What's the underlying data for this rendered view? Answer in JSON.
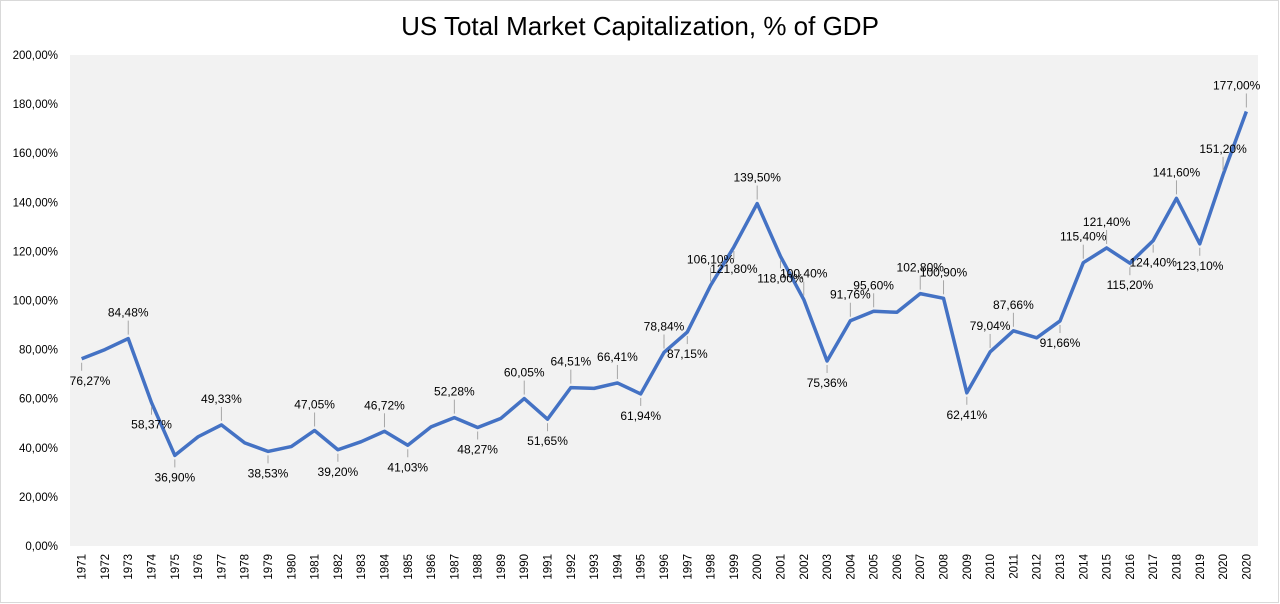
{
  "chart_data": {
    "type": "line",
    "title": "US Total Market Capitalization, % of GDP",
    "categories": [
      "1971",
      "1972",
      "1973",
      "1974",
      "1975",
      "1976",
      "1977",
      "1978",
      "1979",
      "1980",
      "1981",
      "1982",
      "1983",
      "1984",
      "1985",
      "1986",
      "1987",
      "1988",
      "1989",
      "1990",
      "1991",
      "1992",
      "1993",
      "1994",
      "1995",
      "1996",
      "1997",
      "1998",
      "1999",
      "2000",
      "2001",
      "2002",
      "2003",
      "2004",
      "2005",
      "2006",
      "2007",
      "2008",
      "2009",
      "2010",
      "2011",
      "2012",
      "2013",
      "2014",
      "2015",
      "2016",
      "2017",
      "2018",
      "2019",
      "2020",
      "2020"
    ],
    "series": [
      {
        "color": "#4472c4",
        "values": [
          76.27,
          80,
          84.48,
          58.37,
          36.9,
          44.5,
          49.33,
          42,
          38.53,
          40.5,
          47.05,
          39.2,
          42.5,
          46.72,
          41.03,
          48.5,
          52.28,
          48.27,
          52,
          60.05,
          51.65,
          64.51,
          64.2,
          66.41,
          61.94,
          78.84,
          87.15,
          106.1,
          121.8,
          139.5,
          118.0,
          100.4,
          75.36,
          91.76,
          95.6,
          95.2,
          102.8,
          100.9,
          62.41,
          79.04,
          87.66,
          84.8,
          91.66,
          115.4,
          121.4,
          115.2,
          124.4,
          141.6,
          123.1,
          151.2,
          177.0
        ],
        "value_labels": [
          "76,27%",
          null,
          "84,48%",
          "58,37%",
          "36,90%",
          null,
          "49,33%",
          null,
          "38,53%",
          null,
          "47,05%",
          "39,20%",
          null,
          "46,72%",
          "41,03%",
          null,
          "52,28%",
          "48,27%",
          null,
          "60,05%",
          "51,65%",
          "64,51%",
          null,
          "66,41%",
          "61,94%",
          "78,84%",
          "87,15%",
          "106,10%",
          "121,80%",
          "139,50%",
          "118,00%",
          "100,40%",
          "75,36%",
          "91,76%",
          "95,60%",
          null,
          "102,80%",
          "100,90%",
          "62,41%",
          "79,04%",
          "87,66%",
          null,
          "91,66%",
          "115,40%",
          "121,40%",
          "115,20%",
          "124,40%",
          "141,60%",
          "123,10%",
          "151,20%",
          "177,00%"
        ]
      }
    ],
    "ylim": [
      0,
      200
    ],
    "yticks": [
      {
        "value": 0,
        "label": "0,00%"
      },
      {
        "value": 20,
        "label": "20,00%"
      },
      {
        "value": 40,
        "label": "40,00%"
      },
      {
        "value": 60,
        "label": "60,00%"
      },
      {
        "value": 80,
        "label": "80,00%"
      },
      {
        "value": 100,
        "label": "100,00%"
      },
      {
        "value": 120,
        "label": "120,00%"
      },
      {
        "value": 140,
        "label": "140,00%"
      },
      {
        "value": 160,
        "label": "160,00%"
      },
      {
        "value": 180,
        "label": "180,00%"
      },
      {
        "value": 200,
        "label": "200,00%"
      }
    ],
    "grid": false
  }
}
